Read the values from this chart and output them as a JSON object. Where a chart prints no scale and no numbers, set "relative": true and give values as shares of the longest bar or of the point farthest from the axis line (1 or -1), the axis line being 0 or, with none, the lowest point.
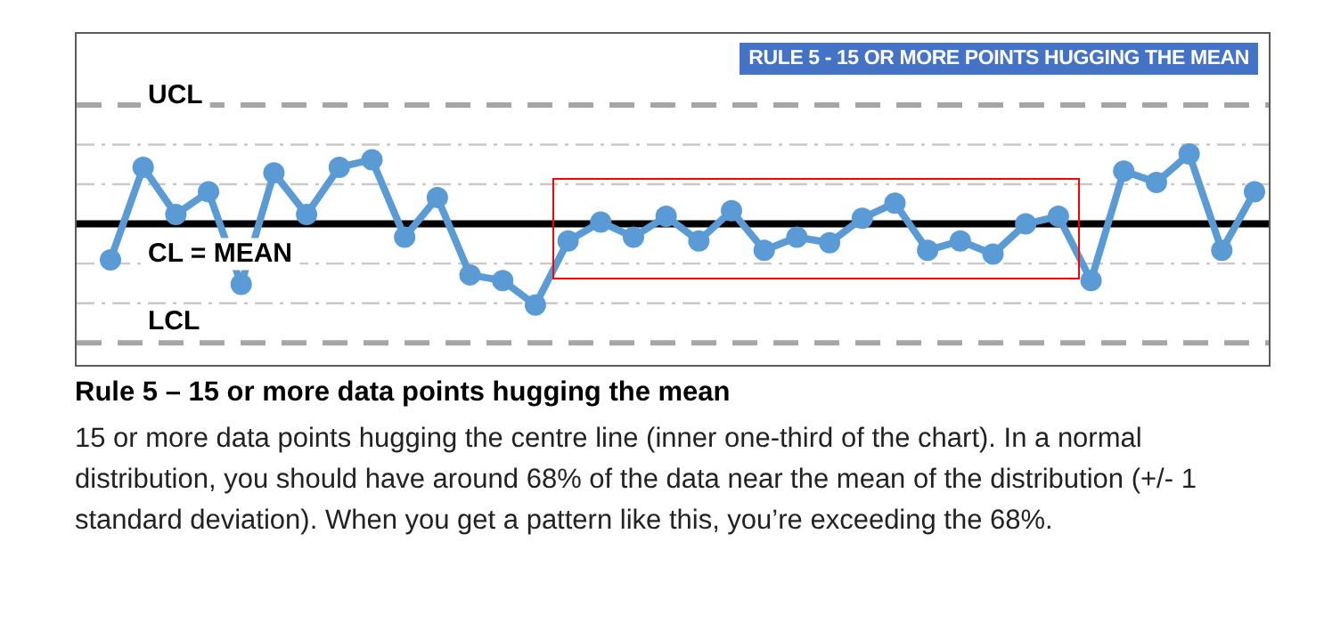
{
  "chart_data": {
    "type": "line",
    "title": "RULE 5 - 15 OR MORE POINTS HUGGING THE MEAN",
    "relative": true,
    "marker": "circle",
    "legend": false,
    "categories": [
      null,
      null,
      null,
      null,
      null,
      null,
      null,
      null,
      null,
      null,
      null,
      null,
      null,
      null,
      null,
      null,
      null,
      null,
      null,
      null,
      null,
      null,
      null,
      null,
      null,
      null,
      null,
      null,
      null,
      null,
      null,
      null,
      null,
      null,
      null,
      null
    ],
    "series": [
      {
        "color": "#5b9bd5",
        "values": [
          0.44,
          0.93,
          0.68,
          0.8,
          0.31,
          0.9,
          0.68,
          0.93,
          0.97,
          0.56,
          0.77,
          0.36,
          0.33,
          0.2,
          0.54,
          0.64,
          0.56,
          0.67,
          0.54,
          0.7,
          0.49,
          0.56,
          0.53,
          0.66,
          0.74,
          0.49,
          0.54,
          0.47,
          0.63,
          0.67,
          0.33,
          0.91,
          0.85,
          1,
          0.49,
          0.8
        ]
      }
    ],
    "ref_lines": [
      {
        "axis": "y",
        "value": 1.26,
        "label": "UCL",
        "color": "#a6a6a6",
        "line_style": "dashed"
      },
      {
        "axis": "y",
        "value": 1.05,
        "color": "#c8c8c8",
        "line_style": "dotted"
      },
      {
        "axis": "y",
        "value": 0.84,
        "color": "#c8c8c8",
        "line_style": "dotted"
      },
      {
        "axis": "y",
        "value": 0.63,
        "label": "CL = MEAN",
        "color": "#000000",
        "line_style": "solid"
      },
      {
        "axis": "y",
        "value": 0.42,
        "color": "#c8c8c8",
        "line_style": "dotted"
      },
      {
        "axis": "y",
        "value": 0.21,
        "color": "#c8c8c8",
        "line_style": "dotted"
      },
      {
        "axis": "y",
        "value": 0,
        "label": "LCL",
        "color": "#a6a6a6",
        "line_style": "dashed"
      }
    ],
    "annotations": [
      "Rule 5 – 15 or more data points hugging the mean",
      "15 or more data points hugging the centre line (inner one-third of the chart). In a normal distribution, you should have around 68% of the data near the mean of the distribution (+/- 1 standard deviation). When you get a pattern like this, you’re exceeding the 68%."
    ]
  }
}
